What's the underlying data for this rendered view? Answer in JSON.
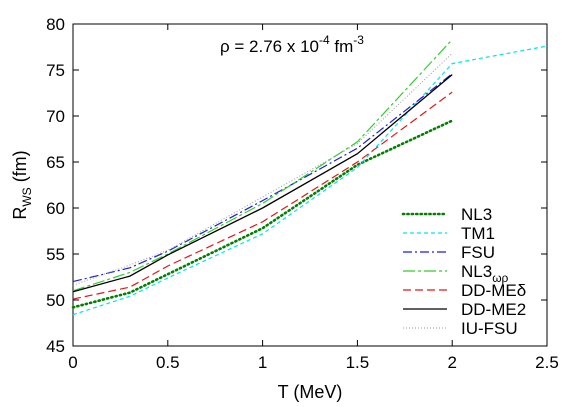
{
  "chart_data": {
    "type": "line",
    "title": "",
    "annotation": {
      "prefix": "ρ = 2.76 x 10",
      "exponent": "-4",
      "unit": " fm",
      "unit_exponent": "-3"
    },
    "xlabel": "T (MeV)",
    "ylabel": {
      "main": "R",
      "sub": "WS",
      "unit": " (fm)"
    },
    "xlim": [
      0,
      2.5
    ],
    "ylim": [
      45,
      80
    ],
    "xticks": [
      0,
      0.5,
      1,
      1.5,
      2,
      2.5
    ],
    "xtick_labels": [
      "0",
      "0.5",
      "1",
      "1.5",
      "2",
      "2.5"
    ],
    "yticks": [
      45,
      50,
      55,
      60,
      65,
      70,
      75,
      80
    ],
    "ytick_labels": [
      "45",
      "50",
      "55",
      "60",
      "65",
      "70",
      "75",
      "80"
    ],
    "grid": false,
    "legend_position": "bottom-right",
    "series": [
      {
        "name": "NL3",
        "label_main": "NL3",
        "label_sub": "",
        "color": "#008000",
        "dash": "dotted-thick",
        "x": [
          0,
          0.3,
          0.5,
          1.0,
          1.5,
          2.0
        ],
        "y": [
          49.2,
          50.8,
          52.8,
          57.8,
          64.7,
          69.5
        ]
      },
      {
        "name": "TM1",
        "label_main": "TM1",
        "label_sub": "",
        "color": "#00e5ee",
        "dash": "dashed-fine",
        "x": [
          0,
          0.3,
          0.5,
          1.0,
          1.5,
          2.0,
          2.5
        ],
        "y": [
          48.4,
          50.4,
          52.4,
          57.2,
          64.4,
          75.7,
          77.6
        ]
      },
      {
        "name": "FSU",
        "label_main": "FSU",
        "label_sub": "",
        "color": "#1f1fd6",
        "dash": "dashdot",
        "x": [
          0,
          0.3,
          0.5,
          1.0,
          1.5,
          2.0
        ],
        "y": [
          52.0,
          53.5,
          55.3,
          60.8,
          66.5,
          74.6
        ]
      },
      {
        "name": "NL3ωρ",
        "label_main": "NL3",
        "label_sub": "ωρ",
        "color": "#33cc33",
        "dash": "dashdot-long",
        "x": [
          0,
          0.3,
          0.5,
          1.0,
          1.5,
          2.0
        ],
        "y": [
          51.0,
          53.0,
          55.0,
          60.5,
          67.2,
          78.3
        ]
      },
      {
        "name": "DD-MEδ",
        "label_main": "DD-MEδ",
        "label_sub": "",
        "color": "#e01818",
        "dash": "dashed",
        "x": [
          0,
          0.3,
          0.5,
          1.0,
          1.5,
          2.0
        ],
        "y": [
          50.1,
          51.4,
          53.7,
          58.5,
          65.0,
          72.6
        ]
      },
      {
        "name": "DD-ME2",
        "label_main": "DD-ME2",
        "label_sub": "",
        "color": "#000000",
        "dash": "solid",
        "x": [
          0,
          0.3,
          0.5,
          1.0,
          1.5,
          2.0
        ],
        "y": [
          50.9,
          52.6,
          54.9,
          60.0,
          65.9,
          74.5
        ]
      },
      {
        "name": "IU-FSU",
        "label_main": "IU-FSU",
        "label_sub": "",
        "color": "#999999",
        "dash": "dotted-fine",
        "x": [
          0,
          0.3,
          0.5,
          1.0,
          1.5,
          2.0
        ],
        "y": [
          51.6,
          53.8,
          55.4,
          61.2,
          67.0,
          76.8
        ]
      }
    ]
  }
}
